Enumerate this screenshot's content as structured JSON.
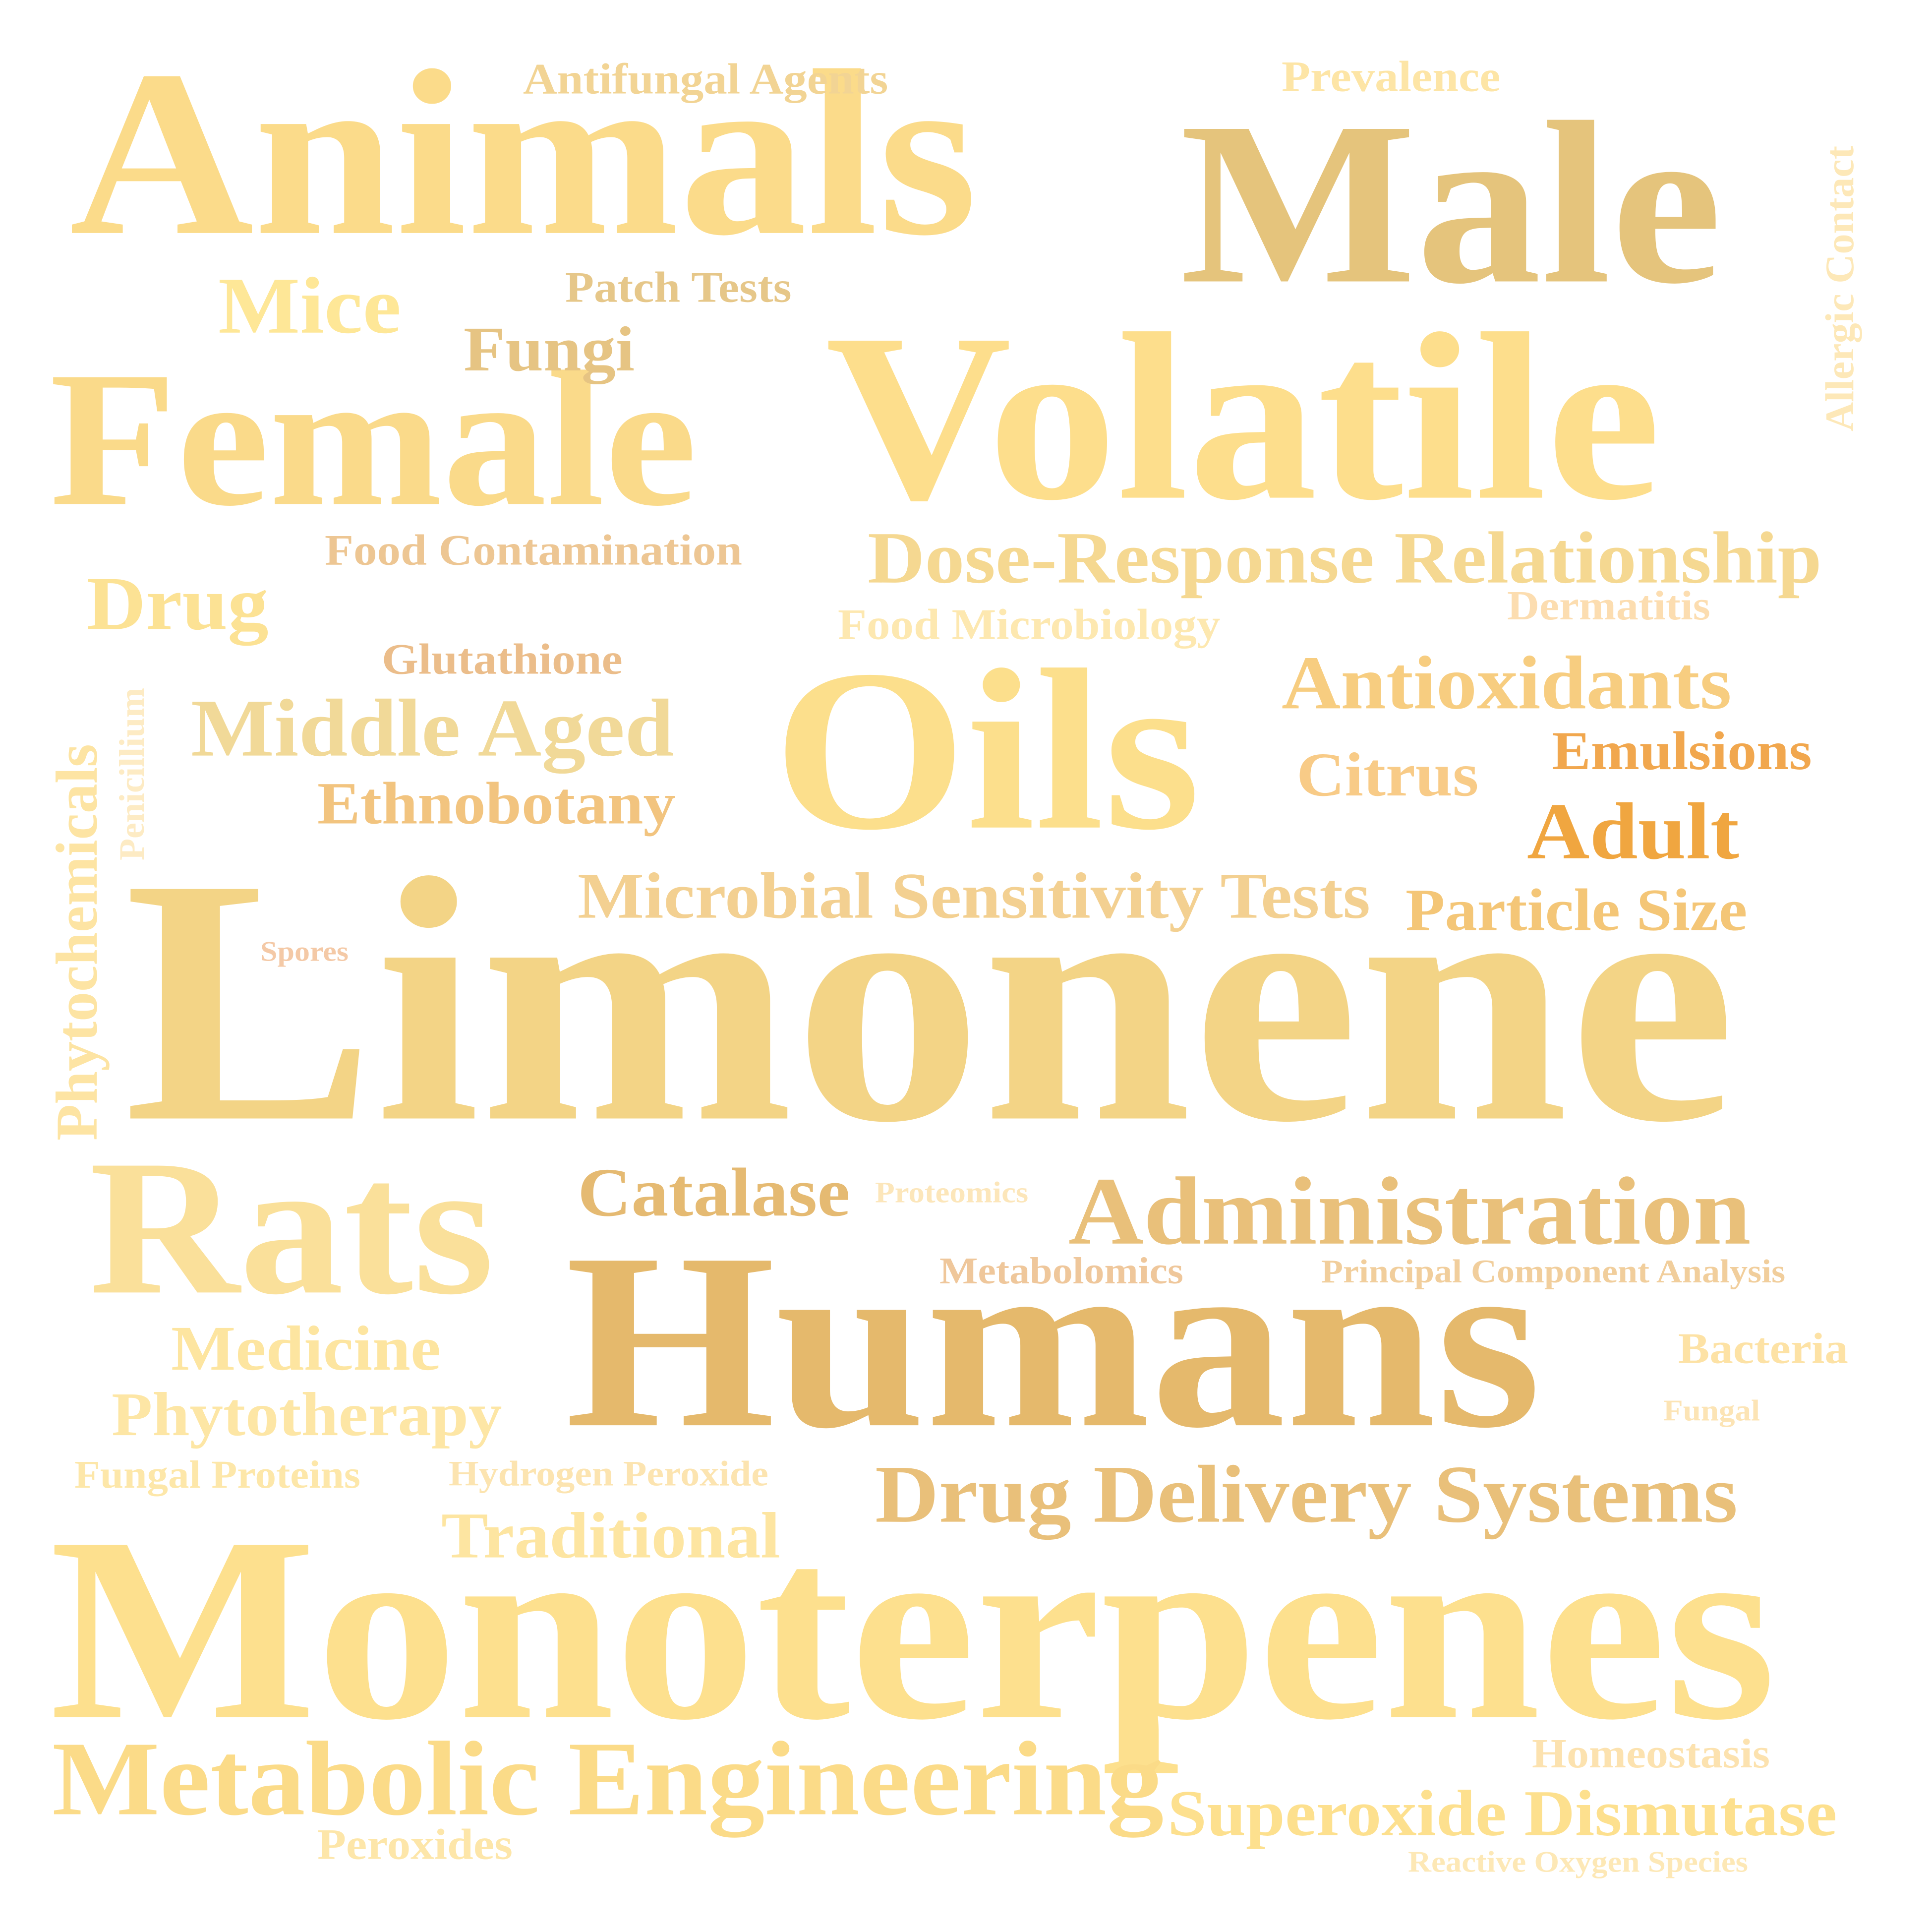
{
  "words": [
    {
      "text": "Limonene",
      "color": "#F3D486"
    },
    {
      "text": "Monoterpenes",
      "color": "#FDE08E"
    },
    {
      "text": "Humans",
      "color": "#E5B96C"
    },
    {
      "text": "Animals",
      "color": "#FBDB8A"
    },
    {
      "text": "Male",
      "color": "#E5C47C"
    },
    {
      "text": "Volatile",
      "color": "#FDDE8C"
    },
    {
      "text": "Female",
      "color": "#FADA8A"
    },
    {
      "text": "Oils",
      "color": "#FCDF8C"
    },
    {
      "text": "Rats",
      "color": "#FAE09A"
    },
    {
      "text": "Administration",
      "color": "#E9C07A"
    },
    {
      "text": "Metabolic Engineering",
      "color": "#FBDB88"
    },
    {
      "text": "Dose-Response Relationship",
      "color": "#F5D891"
    },
    {
      "text": "Drug Delivery Systems",
      "color": "#E9C07A"
    },
    {
      "text": "Superoxide Dismutase",
      "color": "#FDE08E"
    },
    {
      "text": "Microbial Sensitivity Tests",
      "color": "#F3D091"
    },
    {
      "text": "Antioxidants",
      "color": "#F7CD80"
    },
    {
      "text": "Middle Aged",
      "color": "#F1D998"
    },
    {
      "text": "Catalase",
      "color": "#E5BA72"
    },
    {
      "text": "Mice",
      "color": "#FEE797"
    },
    {
      "text": "Adult",
      "color": "#F0A640"
    },
    {
      "text": "Traditional",
      "color": "#FDE5A1"
    },
    {
      "text": "Phytotherapy",
      "color": "#FDE6A5"
    },
    {
      "text": "Medicine",
      "color": "#FDE5A0"
    },
    {
      "text": "Drug",
      "color": "#FCE294"
    },
    {
      "text": "Particle Size",
      "color": "#F4C677"
    },
    {
      "text": "Fungi",
      "color": "#E6C483"
    },
    {
      "text": "Ethnobotany",
      "color": "#F2C47F"
    },
    {
      "text": "Emulsions",
      "color": "#F1A74E"
    },
    {
      "text": "Citrus",
      "color": "#F8CB87"
    },
    {
      "text": "Food Contamination",
      "color": "#EDC693"
    },
    {
      "text": "Patch Tests",
      "color": "#E6C789"
    },
    {
      "text": "Antifungal Agents",
      "color": "#F2D494"
    },
    {
      "text": "Prevalence",
      "color": "#FDE5A6"
    },
    {
      "text": "Food Microbiology",
      "color": "#FDE8B0"
    },
    {
      "text": "Glutathione",
      "color": "#EBBD8A"
    },
    {
      "text": "Dermatitis",
      "color": "#FCDDB0"
    },
    {
      "text": "Homeostasis",
      "color": "#FCE2AF"
    },
    {
      "text": "Bacteria",
      "color": "#FDE2A5"
    },
    {
      "text": "Metabolomics",
      "color": "#EFC79B"
    },
    {
      "text": "Principal Component Analysis",
      "color": "#F1CE9C"
    },
    {
      "text": "Hydrogen Peroxide",
      "color": "#FCE4B0"
    },
    {
      "text": "Fungal Proteins",
      "color": "#FDE7A9"
    },
    {
      "text": "Peroxides",
      "color": "#FDE6A9"
    },
    {
      "text": "Reactive Oxygen Species",
      "color": "#FDE8B6"
    },
    {
      "text": "Proteomics",
      "color": "#FCE6BA"
    },
    {
      "text": "Spores",
      "color": "#F4C9A6"
    },
    {
      "text": "Fungal",
      "color": "#FCE4B5"
    },
    {
      "text": "Phytochemicals",
      "color": "#FDE4A3"
    },
    {
      "text": "Penicillium",
      "color": "#FDEBC4"
    },
    {
      "text": "Allergic Contact",
      "color": "#FDE8B8"
    }
  ]
}
